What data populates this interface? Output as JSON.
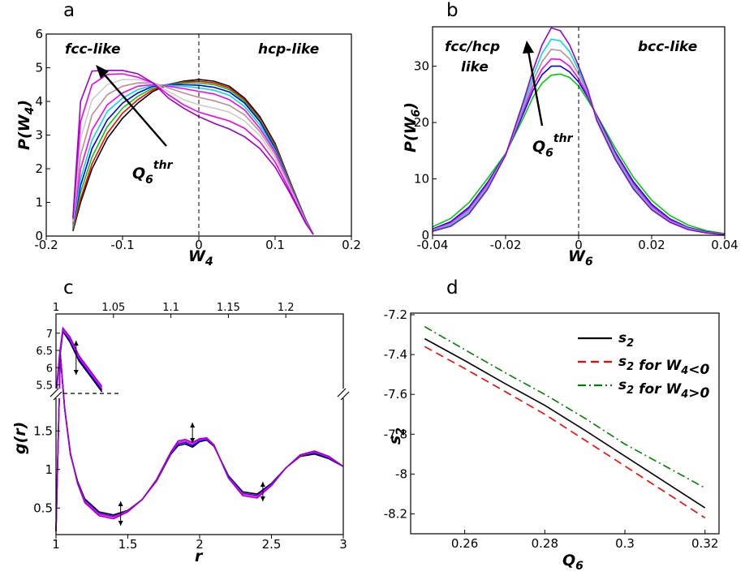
{
  "chart_data": [
    {
      "panel": "a",
      "type": "line",
      "xlabel": "W4",
      "ylabel": "P(W4)",
      "xlim": [
        -0.2,
        0.2
      ],
      "ylim": [
        0,
        6
      ],
      "xticks": [
        "-0.2",
        "-0.1",
        "0",
        "0.1",
        "0.2"
      ],
      "yticks": [
        "0",
        "1",
        "2",
        "3",
        "4",
        "5",
        "6"
      ],
      "annotations": [
        "fcc-like",
        "hcp-like",
        "Q6thr"
      ],
      "x": [
        -0.165,
        -0.155,
        -0.14,
        -0.12,
        -0.1,
        -0.08,
        -0.06,
        -0.04,
        -0.02,
        0,
        0.02,
        0.04,
        0.06,
        0.08,
        0.1,
        0.12,
        0.14,
        0.15
      ],
      "series": [
        {
          "color": "#000000",
          "values": [
            0.15,
            1.0,
            2.0,
            2.9,
            3.5,
            3.95,
            4.3,
            4.5,
            4.6,
            4.65,
            4.6,
            4.45,
            4.1,
            3.55,
            2.75,
            1.6,
            0.5,
            0.05
          ]
        },
        {
          "color": "#ff0000",
          "values": [
            0.2,
            1.1,
            2.15,
            3.05,
            3.65,
            4.05,
            4.35,
            4.5,
            4.58,
            4.6,
            4.55,
            4.4,
            4.05,
            3.5,
            2.7,
            1.58,
            0.48,
            0.05
          ]
        },
        {
          "color": "#00cc00",
          "values": [
            0.25,
            1.3,
            2.35,
            3.25,
            3.8,
            4.15,
            4.4,
            4.5,
            4.55,
            4.55,
            4.5,
            4.35,
            4.0,
            3.45,
            2.65,
            1.55,
            0.47,
            0.05
          ]
        },
        {
          "color": "#0000ff",
          "values": [
            0.3,
            1.5,
            2.6,
            3.45,
            3.95,
            4.25,
            4.45,
            4.5,
            4.5,
            4.48,
            4.42,
            4.28,
            3.95,
            3.4,
            2.6,
            1.52,
            0.46,
            0.05
          ]
        },
        {
          "color": "#00dddd",
          "values": [
            0.3,
            1.7,
            2.85,
            3.7,
            4.1,
            4.35,
            4.48,
            4.48,
            4.45,
            4.4,
            4.33,
            4.18,
            3.85,
            3.3,
            2.55,
            1.5,
            0.45,
            0.05
          ]
        },
        {
          "color": "#ff00ff",
          "values": [
            0.35,
            2.0,
            3.15,
            3.9,
            4.25,
            4.45,
            4.5,
            4.45,
            4.38,
            4.3,
            4.22,
            4.05,
            3.75,
            3.2,
            2.5,
            1.47,
            0.44,
            0.05
          ]
        },
        {
          "color": "#bc8f8f",
          "values": [
            0.4,
            2.4,
            3.6,
            4.2,
            4.45,
            4.55,
            4.55,
            4.4,
            4.25,
            4.12,
            4.02,
            3.88,
            3.6,
            3.1,
            2.42,
            1.43,
            0.43,
            0.05
          ]
        },
        {
          "color": "#cccccc",
          "values": [
            0.45,
            2.9,
            4.05,
            4.5,
            4.65,
            4.65,
            4.55,
            4.3,
            4.05,
            3.9,
            3.8,
            3.68,
            3.42,
            2.98,
            2.33,
            1.38,
            0.42,
            0.05
          ]
        },
        {
          "color": "#ee00ee",
          "values": [
            0.5,
            3.4,
            4.5,
            4.8,
            4.82,
            4.72,
            4.55,
            4.2,
            3.9,
            3.68,
            3.55,
            3.42,
            3.2,
            2.8,
            2.2,
            1.32,
            0.4,
            0.05
          ]
        },
        {
          "color": "#9900cc",
          "values": [
            0.55,
            4.0,
            4.9,
            4.92,
            4.92,
            4.82,
            4.55,
            4.1,
            3.8,
            3.55,
            3.35,
            3.18,
            2.95,
            2.6,
            2.05,
            1.25,
            0.38,
            0.05
          ]
        }
      ]
    },
    {
      "panel": "b",
      "type": "line",
      "xlabel": "W6",
      "ylabel": "P(W6)",
      "xlim": [
        -0.04,
        0.04
      ],
      "ylim": [
        0,
        37
      ],
      "xticks": [
        "-0.04",
        "-0.02",
        "0",
        "0.02",
        "0.04"
      ],
      "yticks": [
        "0",
        "10",
        "20",
        "30"
      ],
      "annotations": [
        "fcc/hcp",
        "like",
        "bcc-like",
        "Q6thr"
      ],
      "x": [
        -0.04,
        -0.035,
        -0.03,
        -0.025,
        -0.02,
        -0.015,
        -0.0125,
        -0.01,
        -0.0075,
        -0.005,
        -0.0025,
        0,
        0.0025,
        0.005,
        0.01,
        0.015,
        0.02,
        0.025,
        0.03,
        0.035,
        0.04
      ],
      "series": [
        {
          "color": "#00cc00",
          "values": [
            1.5,
            3.0,
            5.8,
            10.0,
            14.5,
            21.0,
            24.5,
            27.0,
            28.4,
            28.6,
            28.0,
            26.5,
            24.0,
            21.3,
            15.5,
            10.3,
            6.2,
            3.5,
            1.8,
            0.8,
            0.3
          ]
        },
        {
          "color": "#0000ff",
          "values": [
            1.1,
            2.4,
            5.0,
            9.3,
            14.4,
            21.8,
            25.7,
            28.5,
            30.0,
            30.0,
            29.0,
            27.2,
            24.5,
            21.2,
            14.8,
            9.5,
            5.5,
            2.9,
            1.4,
            0.6,
            0.2
          ]
        },
        {
          "color": "#ff00ff",
          "values": [
            1.0,
            2.2,
            4.7,
            9.0,
            14.3,
            22.3,
            26.5,
            29.5,
            31.3,
            31.2,
            30.0,
            27.8,
            24.8,
            21.0,
            14.5,
            9.1,
            5.2,
            2.7,
            1.3,
            0.5,
            0.2
          ]
        },
        {
          "color": "#bc8f8f",
          "values": [
            0.9,
            2.0,
            4.4,
            8.7,
            14.3,
            22.8,
            27.4,
            30.8,
            33.0,
            32.8,
            31.3,
            28.6,
            25.2,
            20.8,
            14.2,
            8.8,
            4.9,
            2.5,
            1.2,
            0.5,
            0.2
          ]
        },
        {
          "color": "#00dddd",
          "values": [
            0.8,
            1.8,
            4.1,
            8.4,
            14.3,
            23.4,
            28.3,
            32.3,
            34.8,
            34.5,
            32.6,
            29.3,
            25.5,
            20.5,
            13.8,
            8.5,
            4.7,
            2.4,
            1.1,
            0.4,
            0.15
          ]
        },
        {
          "color": "#9900cc",
          "values": [
            0.7,
            1.6,
            3.8,
            8.1,
            14.2,
            24.0,
            29.3,
            33.8,
            36.8,
            36.3,
            33.8,
            30.0,
            25.8,
            20.3,
            13.5,
            8.2,
            4.5,
            2.3,
            1.0,
            0.4,
            0.15
          ]
        }
      ]
    },
    {
      "panel": "c",
      "type": "line",
      "xlabel": "r",
      "ylabel": "g(r)",
      "xlim": [
        1,
        3
      ],
      "xticks": [
        "1",
        "1.5",
        "2",
        "2.5",
        "3"
      ],
      "yticks_lower": [
        "0.5",
        "1",
        "1.5"
      ],
      "inset_xlim": [
        1,
        1.25
      ],
      "inset_xticks": [
        "1",
        "1.05",
        "1.1",
        "1.15",
        "1.2"
      ],
      "inset_yticks": [
        "5.5",
        "6",
        "6.5",
        "7"
      ],
      "arrows_r": [
        1.14,
        1.45,
        1.95,
        2.44
      ],
      "x": [
        1.0,
        1.03,
        1.06,
        1.1,
        1.15,
        1.2,
        1.3,
        1.4,
        1.5,
        1.6,
        1.7,
        1.8,
        1.85,
        1.9,
        1.95,
        2.0,
        2.05,
        2.1,
        2.2,
        2.3,
        2.4,
        2.5,
        2.6,
        2.7,
        2.8,
        2.9,
        3.0
      ],
      "series": [
        {
          "color": "#000000",
          "values": [
            0.2,
            2.5,
            1.8,
            1.2,
            0.85,
            0.62,
            0.45,
            0.41,
            0.47,
            0.61,
            0.85,
            1.2,
            1.31,
            1.33,
            1.29,
            1.36,
            1.38,
            1.3,
            0.92,
            0.71,
            0.68,
            0.82,
            1.02,
            1.17,
            1.2,
            1.14,
            1.04
          ]
        },
        {
          "color": "#0000ff",
          "values": [
            0.2,
            2.5,
            1.8,
            1.2,
            0.84,
            0.6,
            0.43,
            0.39,
            0.46,
            0.61,
            0.86,
            1.21,
            1.33,
            1.35,
            1.31,
            1.37,
            1.39,
            1.31,
            0.91,
            0.69,
            0.66,
            0.81,
            1.02,
            1.18,
            1.22,
            1.15,
            1.04
          ]
        },
        {
          "color": "#ff00ff",
          "values": [
            0.2,
            2.5,
            1.8,
            1.21,
            0.83,
            0.59,
            0.42,
            0.38,
            0.46,
            0.61,
            0.86,
            1.22,
            1.35,
            1.37,
            1.33,
            1.39,
            1.4,
            1.31,
            0.9,
            0.68,
            0.65,
            0.8,
            1.02,
            1.18,
            1.23,
            1.16,
            1.04
          ]
        },
        {
          "color": "#9900cc",
          "values": [
            0.2,
            2.5,
            1.8,
            1.22,
            0.82,
            0.57,
            0.4,
            0.36,
            0.45,
            0.61,
            0.87,
            1.23,
            1.37,
            1.39,
            1.35,
            1.4,
            1.41,
            1.32,
            0.89,
            0.66,
            0.63,
            0.79,
            1.02,
            1.19,
            1.24,
            1.17,
            1.04
          ]
        }
      ]
    },
    {
      "panel": "d",
      "type": "line",
      "xlabel": "Q6",
      "ylabel": "s2",
      "xlim": [
        0.25,
        0.32
      ],
      "ylim": [
        -8.3,
        -7.2
      ],
      "xticks": [
        "0.26",
        "0.28",
        "0.3",
        "0.32"
      ],
      "yticks": [
        "-7.2",
        "-7.4",
        "-7.6",
        "-7.8",
        "-8",
        "-8.2"
      ],
      "legend_position": "top-right",
      "x": [
        0.25,
        0.26,
        0.27,
        0.28,
        0.29,
        0.3,
        0.31,
        0.32
      ],
      "series": [
        {
          "name": "s2",
          "color": "#000000",
          "dash": "solid",
          "values": [
            -7.32,
            -7.43,
            -7.545,
            -7.655,
            -7.78,
            -7.91,
            -8.04,
            -8.17
          ]
        },
        {
          "name": "s2 for W4<0",
          "color": "#ff0000",
          "dash": "dashed",
          "values": [
            -7.36,
            -7.47,
            -7.585,
            -7.7,
            -7.83,
            -7.96,
            -8.09,
            -8.22
          ]
        },
        {
          "name": "s2 for W4>0",
          "color": "#008000",
          "dash": "dashdot",
          "values": [
            -7.26,
            -7.375,
            -7.49,
            -7.6,
            -7.72,
            -7.85,
            -7.96,
            -8.07
          ]
        }
      ]
    }
  ]
}
